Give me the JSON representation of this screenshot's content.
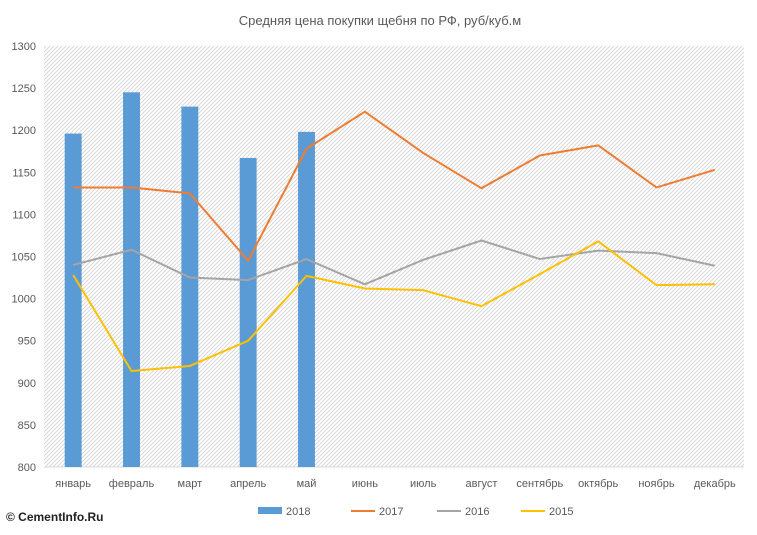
{
  "chart_data": {
    "type": "bar+line",
    "title": "Средняя цена покупки щебня по РФ, руб/куб.м",
    "categories": [
      "январь",
      "февраль",
      "март",
      "апрель",
      "май",
      "июнь",
      "июль",
      "август",
      "сентябрь",
      "октябрь",
      "ноябрь",
      "декабрь"
    ],
    "ylim": [
      800,
      1300
    ],
    "yticks": [
      "800",
      "850",
      "900",
      "950",
      "1000",
      "1050",
      "1100",
      "1150",
      "1200",
      "1250",
      "1300"
    ],
    "grid": false,
    "legend_position": "bottom",
    "series": [
      {
        "name": "2018",
        "kind": "bar",
        "color": "#5B9BD5",
        "values": [
          1196,
          1245,
          1228,
          1167,
          1198,
          null,
          null,
          null,
          null,
          null,
          null,
          null
        ]
      },
      {
        "name": "2017",
        "kind": "line",
        "color": "#ED7D31",
        "values": [
          1132,
          1132,
          1125,
          1045,
          1178,
          1222,
          1173,
          1131,
          1170,
          1182,
          1132,
          1153
        ]
      },
      {
        "name": "2016",
        "kind": "line",
        "color": "#A5A5A5",
        "values": [
          1040,
          1058,
          1025,
          1022,
          1047,
          1017,
          1046,
          1069,
          1047,
          1057,
          1054,
          1039
        ]
      },
      {
        "name": "2015",
        "kind": "line",
        "color": "#FFC000",
        "values": [
          1028,
          914,
          920,
          950,
          1027,
          1012,
          1010,
          991,
          1029,
          1068,
          1016,
          1017
        ]
      }
    ]
  },
  "watermark": "© CementInfo.Ru",
  "colors": {
    "background": "#ffffff",
    "plot_hatch": "#d0d0d0",
    "text": "#595959"
  }
}
